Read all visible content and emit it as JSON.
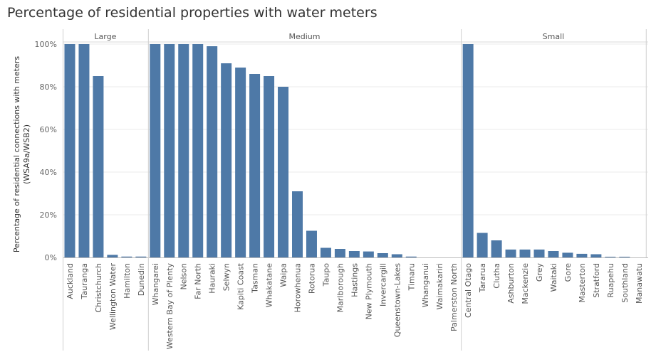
{
  "title": "Percentage of residential properties with water meters",
  "chart_data": {
    "type": "bar",
    "title": "Percentage of residential properties with water meters",
    "ylabel": "Percentage of residential connections with meters (WSA9a/WSB2)",
    "ylabel_lines": [
      "Percentage of residential connections with meters",
      "(WSA9a/WSB2)"
    ],
    "ylim": [
      0,
      100
    ],
    "yticks": [
      0,
      20,
      40,
      60,
      80,
      100
    ],
    "ytick_labels": [
      "0%",
      "20%",
      "40%",
      "60%",
      "80%",
      "100%"
    ],
    "bar_color": "#4e79a7",
    "groups": [
      {
        "name": "Large",
        "categories": [
          "Auckland",
          "Tauranga",
          "Christchurch",
          "Wellington Water",
          "Hamilton",
          "Dunedin"
        ],
        "values": [
          100,
          100,
          85,
          1.2,
          0.4,
          0.4
        ]
      },
      {
        "name": "Medium",
        "categories": [
          "Whangarei",
          "Western Bay of Plenty",
          "Nelson",
          "Far North",
          "Hauraki",
          "Selwyn",
          "Kapiti Coast",
          "Tasman",
          "Whakatane",
          "Waipa",
          "Horowhenua",
          "Rotorua",
          "Taupo",
          "Marlborough",
          "Hastings",
          "New Plymouth",
          "Invercargill",
          "Queenstown-Lakes",
          "Timaru",
          "Whanganui",
          "Waimakariri",
          "Palmerston North"
        ],
        "values": [
          100,
          100,
          100,
          100,
          99,
          91,
          89,
          86,
          85,
          80,
          31,
          12.5,
          4.5,
          4,
          3,
          2.8,
          2,
          1.5,
          0.4,
          0,
          0,
          0
        ]
      },
      {
        "name": "Small",
        "categories": [
          "Central Otago",
          "Tararua",
          "Clutha",
          "Ashburton",
          "Mackenzie",
          "Grey",
          "Waitaki",
          "Gore",
          "Masterton",
          "Stratford",
          "Ruapehu",
          "Southland",
          "Manawatu"
        ],
        "values": [
          100,
          11.5,
          8,
          3.7,
          3.7,
          3.7,
          3,
          2.2,
          1.7,
          1.5,
          0.3,
          0.3,
          0
        ]
      }
    ]
  }
}
